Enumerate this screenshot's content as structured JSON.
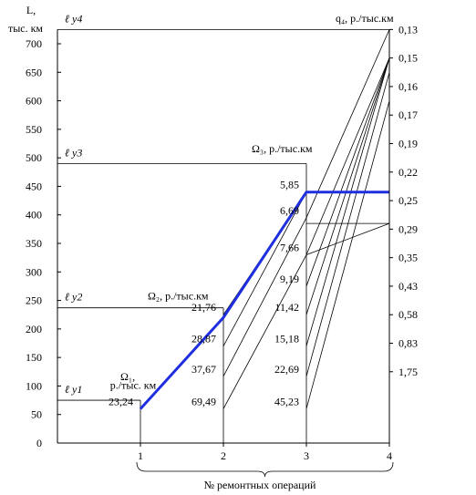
{
  "chart_data": {
    "type": "line",
    "y_axis_label": [
      "L,",
      "тыс. км"
    ],
    "x_axis_label": "№ ремонтных операций",
    "y_ticks": [
      0,
      50,
      100,
      150,
      200,
      250,
      300,
      350,
      400,
      450,
      500,
      550,
      600,
      650,
      700
    ],
    "ylim": [
      0,
      725
    ],
    "x_ticks": [
      "1",
      "2",
      "3",
      "4"
    ],
    "xlim": [
      0,
      4
    ],
    "right_axis_label": "q₄, р./тыс.км",
    "right_ticks": [
      {
        "label": "0,13",
        "L": 725
      },
      {
        "label": "0,15",
        "L": 675
      },
      {
        "label": "0,16",
        "L": 625
      },
      {
        "label": "0,17",
        "L": 575
      },
      {
        "label": "0,19",
        "L": 525
      },
      {
        "label": "0,22",
        "L": 475
      },
      {
        "label": "0,25",
        "L": 425
      },
      {
        "label": "0,29",
        "L": 375
      },
      {
        "label": "0,35",
        "L": 325
      },
      {
        "label": "0,43",
        "L": 275
      },
      {
        "label": "0,58",
        "L": 225
      },
      {
        "label": "0,83",
        "L": 175
      },
      {
        "label": "1,75",
        "L": 125
      }
    ],
    "levels": [
      {
        "label": "ℓ у1",
        "L": 75,
        "x_end": 1
      },
      {
        "label": "ℓ у2",
        "L": 237,
        "x_end": 2
      },
      {
        "label": "ℓ у3",
        "L": 490,
        "x_end": 3
      },
      {
        "label": "ℓ у4",
        "L": 725,
        "x_end": 4
      }
    ],
    "omega_labels": [
      {
        "label": "Ω₁,",
        "sub": "р./тыс. км",
        "x": 1
      },
      {
        "label": "Ω₂, р./тыс.км",
        "x": 2
      },
      {
        "label": "Ω₃, р./тыс.км",
        "x": 3
      }
    ],
    "point_labels": [
      {
        "label": "23,24",
        "x": 1,
        "L": 60
      },
      {
        "label": "21,76",
        "x": 2,
        "L": 225
      },
      {
        "label": "28,87",
        "x": 2,
        "L": 170
      },
      {
        "label": "37,67",
        "x": 2,
        "L": 117
      },
      {
        "label": "69,49",
        "x": 2,
        "L": 60
      },
      {
        "label": "5,85",
        "x": 3,
        "L": 440
      },
      {
        "label": "6,69",
        "x": 3,
        "L": 395
      },
      {
        "label": "7,66",
        "x": 3,
        "L": 330
      },
      {
        "label": "9,19",
        "x": 3,
        "L": 275
      },
      {
        "label": "11,42",
        "x": 3,
        "L": 225
      },
      {
        "label": "15,18",
        "x": 3,
        "L": 170
      },
      {
        "label": "22,69",
        "x": 3,
        "L": 117
      },
      {
        "label": "45,23",
        "x": 3,
        "L": 60
      }
    ],
    "optimal_path": {
      "x": [
        1,
        2,
        3,
        4
      ],
      "y": [
        60,
        220,
        440,
        440
      ],
      "color": "#1f2fe0"
    },
    "transition_lines": [
      {
        "x": [
          2,
          3
        ],
        "y": [
          225,
          440
        ]
      },
      {
        "x": [
          2,
          3
        ],
        "y": [
          170,
          440
        ]
      },
      {
        "x": [
          2,
          3
        ],
        "y": [
          117,
          395
        ]
      },
      {
        "x": [
          2,
          3
        ],
        "y": [
          60,
          330
        ]
      },
      {
        "x": [
          3,
          4
        ],
        "y": [
          440,
          440
        ]
      },
      {
        "x": [
          3,
          4
        ],
        "y": [
          395,
          725
        ]
      },
      {
        "x": [
          3,
          4
        ],
        "y": [
          330,
          675
        ]
      },
      {
        "x": [
          3,
          4
        ],
        "y": [
          275,
          675
        ]
      },
      {
        "x": [
          3,
          4
        ],
        "y": [
          225,
          675
        ]
      },
      {
        "x": [
          3,
          4
        ],
        "y": [
          170,
          675
        ]
      },
      {
        "x": [
          3,
          4
        ],
        "y": [
          117,
          650
        ]
      },
      {
        "x": [
          3,
          4
        ],
        "y": [
          60,
          600
        ]
      },
      {
        "x": [
          3,
          4
        ],
        "y": [
          330,
          385
        ]
      }
    ],
    "segment_25": {
      "x": [
        3,
        4
      ],
      "y": [
        385,
        385
      ]
    }
  }
}
